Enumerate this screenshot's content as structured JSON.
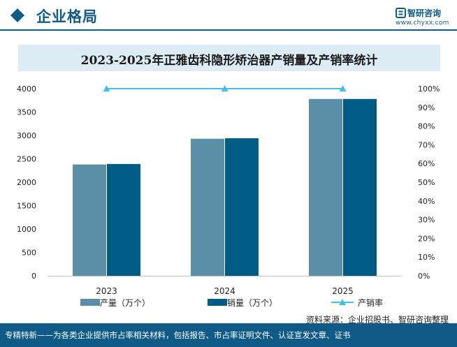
{
  "header": {
    "section_title": "企业格局",
    "logo_name": "智研咨询",
    "logo_url": "www.chyxx.com"
  },
  "colors": {
    "brand": "#0f5a86",
    "production": "#5b8fa8",
    "sales": "#005c85",
    "rate": "#3fc1ea",
    "title_band": "#dcebf4"
  },
  "chart_data": {
    "type": "bar",
    "title": "2023-2025年正雅齿科隐形矫治器产销量及产销率统计",
    "categories": [
      "2023",
      "2024",
      "2025"
    ],
    "series": [
      {
        "name": "产量（万个）",
        "type": "bar",
        "axis": "left",
        "values": [
          2380,
          2930,
          3780
        ]
      },
      {
        "name": "销量（万个）",
        "type": "bar",
        "axis": "left",
        "values": [
          2390,
          2940,
          3780
        ]
      },
      {
        "name": "产销率",
        "type": "line",
        "axis": "right",
        "values": [
          100,
          100,
          100
        ]
      }
    ],
    "ylim_left": [
      0,
      4000
    ],
    "yticks_left": [
      "0",
      "500",
      "1000",
      "1500",
      "2000",
      "2500",
      "3000",
      "3500",
      "4000"
    ],
    "ylim_right": [
      0,
      100
    ],
    "yticks_right": [
      "0%",
      "10%",
      "20%",
      "30%",
      "40%",
      "50%",
      "60%",
      "70%",
      "80%",
      "90%",
      "100%"
    ],
    "grid": false,
    "legend_position": "bottom"
  },
  "source": "资料来源：企业招股书、智研咨询整理",
  "footer": "专精特新——为各类企业提供市占率相关材料，包括报告、市占率证明文件、认证宣发文章、证书"
}
